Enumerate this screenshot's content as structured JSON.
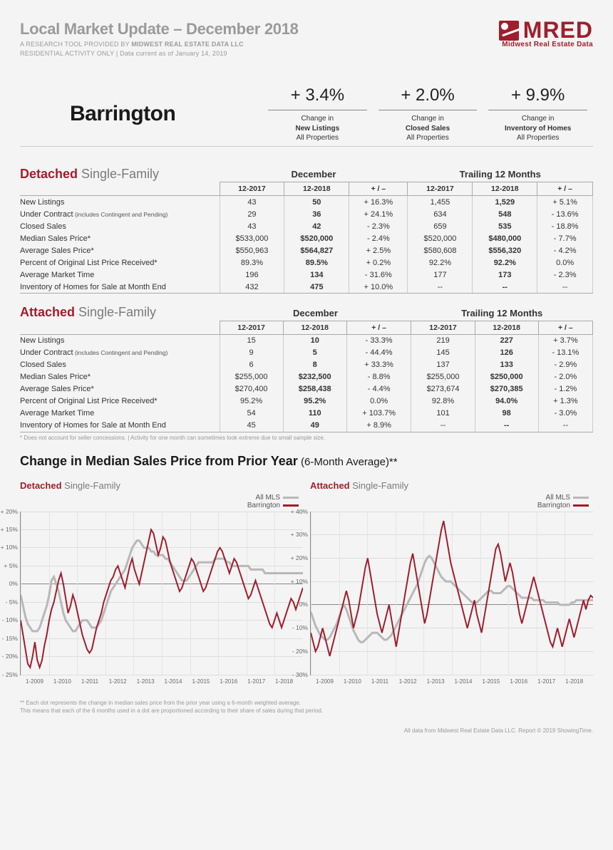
{
  "header": {
    "title": "Local Market Update – December 2018",
    "subtitle_pre": "A RESEARCH TOOL PROVIDED BY ",
    "subtitle_bold": "MIDWEST REAL ESTATE DATA LLC",
    "subtitle2": "RESIDENTIAL ACTIVITY ONLY  |  Data current as of January 14, 2019",
    "logo_main": "MRED",
    "logo_sub": "Midwest Real Estate Data"
  },
  "city": "Barrington",
  "topstats": [
    {
      "value": "+ 3.4%",
      "label_pre": "Change in",
      "label_bold": "New Listings",
      "label_post": "All Properties"
    },
    {
      "value": "+ 2.0%",
      "label_pre": "Change in",
      "label_bold": "Closed Sales",
      "label_post": "All Properties"
    },
    {
      "value": "+ 9.9%",
      "label_pre": "Change in",
      "label_bold": "Inventory of Homes",
      "label_post": "All Properties"
    }
  ],
  "metrics": [
    {
      "label": "New Listings",
      "small": ""
    },
    {
      "label": "Under Contract",
      "small": " (includes Contingent and Pending)"
    },
    {
      "label": "Closed Sales",
      "small": ""
    },
    {
      "label": "Median Sales Price*",
      "small": ""
    },
    {
      "label": "Average Sales Price*",
      "small": ""
    },
    {
      "label": "Percent of Original List Price Received*",
      "small": ""
    },
    {
      "label": "Average Market Time",
      "small": ""
    },
    {
      "label": "Inventory of Homes for Sale at Month End",
      "small": ""
    }
  ],
  "table_periods": {
    "p1": "December",
    "p2": "Trailing 12 Months"
  },
  "table_cols": {
    "a": "12-2017",
    "b": "12-2018",
    "c": "+ / –",
    "d": "12-2017",
    "e": "12-2018",
    "f": "+ / –"
  },
  "detached": {
    "title_red": "Detached",
    "title_gray": " Single-Family",
    "rows": [
      [
        "43",
        "50",
        "+ 16.3%",
        "1,455",
        "1,529",
        "+ 5.1%"
      ],
      [
        "29",
        "36",
        "+ 24.1%",
        "634",
        "548",
        "- 13.6%"
      ],
      [
        "43",
        "42",
        "- 2.3%",
        "659",
        "535",
        "- 18.8%"
      ],
      [
        "$533,000",
        "$520,000",
        "- 2.4%",
        "$520,000",
        "$480,000",
        "- 7.7%"
      ],
      [
        "$550,963",
        "$564,827",
        "+ 2.5%",
        "$580,608",
        "$556,320",
        "- 4.2%"
      ],
      [
        "89.3%",
        "89.5%",
        "+ 0.2%",
        "92.2%",
        "92.2%",
        "0.0%"
      ],
      [
        "196",
        "134",
        "- 31.6%",
        "177",
        "173",
        "- 2.3%"
      ],
      [
        "432",
        "475",
        "+ 10.0%",
        "--",
        "--",
        "--"
      ]
    ]
  },
  "attached": {
    "title_red": "Attached",
    "title_gray": " Single-Family",
    "rows": [
      [
        "15",
        "10",
        "- 33.3%",
        "219",
        "227",
        "+ 3.7%"
      ],
      [
        "9",
        "5",
        "- 44.4%",
        "145",
        "126",
        "- 13.1%"
      ],
      [
        "6",
        "8",
        "+ 33.3%",
        "137",
        "133",
        "- 2.9%"
      ],
      [
        "$255,000",
        "$232,500",
        "- 8.8%",
        "$255,000",
        "$250,000",
        "- 2.0%"
      ],
      [
        "$270,400",
        "$258,438",
        "- 4.4%",
        "$273,674",
        "$270,385",
        "- 1.2%"
      ],
      [
        "95.2%",
        "95.2%",
        "0.0%",
        "92.8%",
        "94.0%",
        "+ 1.3%"
      ],
      [
        "54",
        "110",
        "+ 103.7%",
        "101",
        "98",
        "- 3.0%"
      ],
      [
        "45",
        "49",
        "+ 8.9%",
        "--",
        "--",
        "--"
      ]
    ]
  },
  "footnote": "* Does not account for seller concessions.  |  Activity for one month can sometimes look extreme due to small sample size.",
  "chart_section_title": "Change in Median Sales Price from Prior Year",
  "chart_section_paren": " (6-Month Average)**",
  "legend": {
    "s1": "All MLS",
    "s2": "Barrington"
  },
  "xlabels": [
    "1-2009",
    "1-2010",
    "1-2011",
    "1-2012",
    "1-2013",
    "1-2014",
    "1-2015",
    "1-2016",
    "1-2017",
    "1-2018"
  ],
  "chart_colors": {
    "grid": "#dddddd",
    "zero": "#888888",
    "mls": "#b8b8b8",
    "area": "#a01e2c",
    "bg": "#f4f4f4"
  },
  "chart1": {
    "title_red": "Detached",
    "title_gray": " Single-Family",
    "ymin": -25,
    "ymax": 20,
    "ystep": 5,
    "ylabels": [
      "+ 20%",
      "+ 15%",
      "+ 10%",
      "+ 5%",
      "0%",
      "- 5%",
      "- 10%",
      "- 15%",
      "- 20%",
      "- 25%"
    ],
    "mls": [
      -3,
      -6,
      -9,
      -11,
      -12,
      -13,
      -13,
      -13,
      -12,
      -10,
      -8,
      -6,
      -3,
      1,
      2,
      0,
      -2,
      -5,
      -8,
      -10,
      -11,
      -12,
      -13,
      -13,
      -12,
      -11,
      -10,
      -10,
      -10,
      -11,
      -12,
      -12,
      -12,
      -11,
      -10,
      -8,
      -6,
      -4,
      -2,
      -1,
      0,
      1,
      2,
      3,
      4,
      6,
      8,
      10,
      11,
      12,
      12,
      11,
      10,
      10,
      10,
      9,
      9,
      8,
      8,
      8,
      8,
      7,
      7,
      6,
      5,
      4,
      3,
      2,
      1,
      1,
      1,
      2,
      3,
      4,
      5,
      6,
      6,
      6,
      6,
      6,
      6,
      6,
      7,
      7,
      7,
      7,
      7,
      6,
      6,
      5,
      5,
      5,
      5,
      5,
      5,
      5,
      5,
      4,
      4,
      4,
      4,
      4,
      4,
      3,
      3,
      3,
      3,
      3,
      3,
      3,
      3,
      3,
      3,
      3,
      3,
      3,
      3,
      3,
      3,
      3
    ],
    "area": [
      -10,
      -14,
      -18,
      -22,
      -23,
      -20,
      -16,
      -21,
      -23,
      -21,
      -17,
      -14,
      -10,
      -7,
      -5,
      -2,
      1,
      3,
      0,
      -4,
      -8,
      -6,
      -3,
      -5,
      -8,
      -11,
      -14,
      -16,
      -18,
      -19,
      -18,
      -15,
      -12,
      -10,
      -8,
      -5,
      -3,
      -1,
      1,
      2,
      4,
      5,
      3,
      1,
      -1,
      2,
      5,
      7,
      4,
      2,
      0,
      3,
      6,
      9,
      12,
      15,
      14,
      11,
      8,
      10,
      13,
      12,
      9,
      6,
      4,
      2,
      0,
      -2,
      -1,
      1,
      3,
      5,
      7,
      6,
      4,
      2,
      0,
      -2,
      -1,
      1,
      3,
      5,
      7,
      9,
      10,
      9,
      7,
      5,
      3,
      5,
      7,
      6,
      4,
      2,
      0,
      -2,
      -4,
      -3,
      -1,
      1,
      -1,
      -3,
      -5,
      -7,
      -9,
      -11,
      -12,
      -10,
      -8,
      -10,
      -12,
      -10,
      -8,
      -6,
      -4,
      -5,
      -7,
      -5,
      -3,
      -1
    ]
  },
  "chart2": {
    "title_red": "Attached",
    "title_gray": " Single-Family",
    "ymin": -30,
    "ymax": 40,
    "ystep": 10,
    "ylabels": [
      "+ 40%",
      "+ 30%",
      "+ 20%",
      "+ 10%",
      "0%",
      "- 10%",
      "- 20%",
      "- 30%"
    ],
    "mls": [
      -3,
      -6,
      -9,
      -11,
      -13,
      -14,
      -15,
      -15,
      -14,
      -12,
      -10,
      -8,
      -5,
      -2,
      0,
      -2,
      -5,
      -8,
      -11,
      -13,
      -15,
      -16,
      -16,
      -15,
      -14,
      -13,
      -12,
      -12,
      -12,
      -13,
      -14,
      -15,
      -15,
      -14,
      -13,
      -11,
      -9,
      -7,
      -5,
      -3,
      -1,
      1,
      3,
      5,
      7,
      9,
      12,
      15,
      18,
      20,
      21,
      20,
      18,
      16,
      14,
      12,
      11,
      10,
      10,
      10,
      9,
      8,
      7,
      6,
      5,
      4,
      3,
      2,
      1,
      1,
      1,
      2,
      3,
      4,
      5,
      6,
      6,
      5,
      5,
      5,
      5,
      6,
      7,
      8,
      8,
      7,
      6,
      5,
      4,
      3,
      3,
      3,
      3,
      3,
      2,
      2,
      2,
      2,
      2,
      1,
      1,
      1,
      1,
      1,
      1,
      0,
      0,
      0,
      0,
      0,
      1,
      1,
      2,
      2,
      2,
      2,
      2,
      2,
      2,
      2
    ],
    "area": [
      -12,
      -16,
      -20,
      -18,
      -14,
      -10,
      -14,
      -18,
      -22,
      -18,
      -14,
      -10,
      -6,
      -2,
      2,
      6,
      2,
      -4,
      -10,
      -6,
      -2,
      4,
      10,
      16,
      20,
      14,
      8,
      2,
      -4,
      -8,
      -12,
      -8,
      -4,
      0,
      -6,
      -12,
      -18,
      -12,
      -6,
      0,
      6,
      12,
      18,
      22,
      16,
      10,
      4,
      -2,
      -8,
      -4,
      2,
      8,
      14,
      20,
      26,
      32,
      36,
      30,
      24,
      18,
      14,
      10,
      6,
      2,
      -2,
      -6,
      -10,
      -6,
      -2,
      2,
      -4,
      -8,
      -12,
      -6,
      0,
      6,
      12,
      18,
      24,
      26,
      22,
      16,
      10,
      14,
      18,
      14,
      8,
      2,
      -4,
      -8,
      -4,
      0,
      4,
      8,
      12,
      8,
      4,
      0,
      -4,
      -8,
      -12,
      -16,
      -18,
      -14,
      -10,
      -14,
      -18,
      -14,
      -10,
      -6,
      -10,
      -14,
      -10,
      -6,
      -2,
      2,
      -2,
      2,
      4,
      3
    ]
  },
  "foot1a": "** Each dot represents the change in median sales price from the prior year using a 6-month weighted average.",
  "foot1b": "This means that each of the 6 months used in a dot are proportioned according to their share of sales during that period.",
  "foot2": "All data from Midwest Real Estate Data LLC. Report © 2019 ShowingTime."
}
